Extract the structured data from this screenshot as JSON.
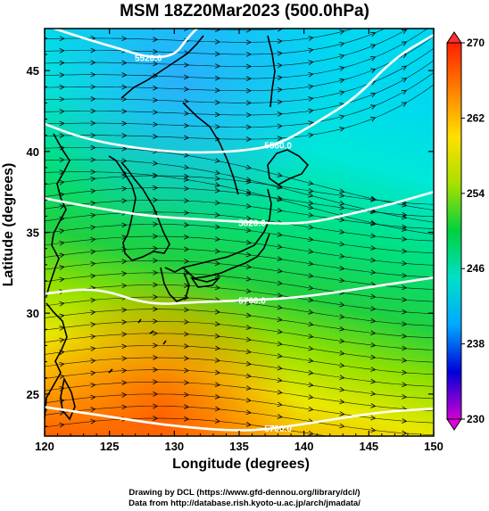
{
  "title": "MSM 18Z20Mar2023 (500.0hPa)",
  "xlabel": "Longitude (degrees)",
  "ylabel": "Latitude  (degrees)",
  "credits": {
    "line1": "Drawing by DCL (https://www.gfd-dennou.org/library/dcl/)",
    "line2": "Data from http://database.rish.kyoto-u.ac.jp/arch/jmadata/"
  },
  "chart_data": {
    "type": "heatmap",
    "x_range": [
      120,
      150
    ],
    "y_range": [
      22.4,
      47.6
    ],
    "x_ticks": [
      120,
      125,
      130,
      135,
      140,
      145,
      150
    ],
    "y_ticks": [
      25,
      30,
      35,
      40,
      45
    ],
    "colorbar": {
      "min": 230,
      "max": 270,
      "ticks": [
        230,
        238,
        246,
        254,
        262,
        270
      ],
      "colors": [
        "#d000d0",
        "#0000d8",
        "#00a8ff",
        "#00e0c8",
        "#00d040",
        "#a8e000",
        "#ffe000",
        "#ff8000",
        "#ff2000"
      ]
    },
    "contours": [
      {
        "label": "5700.0",
        "points": [
          [
            120,
            24.2
          ],
          [
            125,
            23.6
          ],
          [
            130,
            23.0
          ],
          [
            135,
            22.7
          ],
          [
            138,
            22.9
          ],
          [
            142,
            23.4
          ],
          [
            146,
            23.9
          ],
          [
            150,
            24.1
          ]
        ]
      },
      {
        "label": "5760.0",
        "points": [
          [
            120,
            31.2
          ],
          [
            124,
            31.6
          ],
          [
            128,
            30.5
          ],
          [
            132,
            30.7
          ],
          [
            136,
            30.8
          ],
          [
            140,
            31.0
          ],
          [
            145,
            31.6
          ],
          [
            150,
            32.2
          ]
        ]
      },
      {
        "label": "5820.0",
        "points": [
          [
            120,
            37.1
          ],
          [
            124,
            36.5
          ],
          [
            128,
            36.0
          ],
          [
            132,
            35.8
          ],
          [
            136,
            35.6
          ],
          [
            140,
            35.5
          ],
          [
            144,
            36.2
          ],
          [
            147,
            36.8
          ],
          [
            150,
            37.5
          ]
        ]
      },
      {
        "label": "5580.0",
        "points": [
          [
            120,
            41.7
          ],
          [
            123,
            40.8
          ],
          [
            127,
            40.2
          ],
          [
            131,
            39.9
          ],
          [
            135,
            40.0
          ],
          [
            138,
            40.4
          ],
          [
            141,
            41.8
          ],
          [
            144,
            43.3
          ],
          [
            147,
            45.8
          ],
          [
            150,
            47.2
          ]
        ]
      },
      {
        "label": "5520.0",
        "points": [
          [
            120,
            47.8
          ],
          [
            123,
            47.0
          ],
          [
            126,
            46.3
          ],
          [
            128,
            45.8
          ],
          [
            130,
            45.9
          ],
          [
            131,
            47.0
          ],
          [
            132,
            47.8
          ]
        ]
      }
    ]
  }
}
